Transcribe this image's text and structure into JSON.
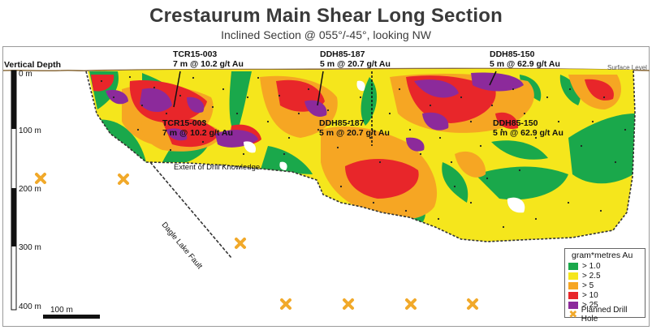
{
  "title": "Crestaurum Main Shear Long Section",
  "subtitle": "Inclined Section @ 055°/-45°, looking NW",
  "axis": {
    "label": "Vertical Depth",
    "ticks": [
      "0 m",
      "100 m",
      "200 m",
      "300 m",
      "400 m"
    ],
    "scale_label": "100 m"
  },
  "surface_label": "Surface Level",
  "drill_extent_label": "Extent of Drill Knowledge",
  "fault_label": "Dagle Lake Fault",
  "holes": [
    {
      "name": "TCR15-003",
      "intercept": "7 m @ 10.2 g/t Au"
    },
    {
      "name": "DDH85-187",
      "intercept": "5 m @ 20.7 g/t Au"
    },
    {
      "name": "DDH85-150",
      "intercept": "5 m @ 62.9 g/t Au"
    }
  ],
  "legend": {
    "title": "gram*metres Au",
    "items": [
      {
        "label": "> 1.0",
        "color": "#1aa84b"
      },
      {
        "label": "> 2.5",
        "color": "#f5e61c"
      },
      {
        "label": "> 5",
        "color": "#f6a623"
      },
      {
        "label": "> 10",
        "color": "#e8262a"
      },
      {
        "label": "> 25",
        "color": "#8c2a9b"
      }
    ],
    "planned_label": "Planned Drill Hole"
  },
  "colors": {
    "planned_marker": "#f1a92a",
    "surface_line": "#8a6a3a"
  }
}
